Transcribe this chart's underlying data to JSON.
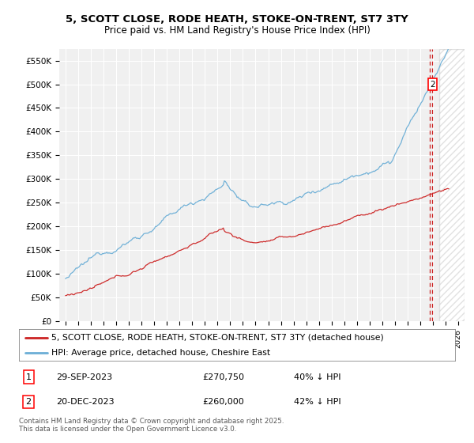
{
  "title": "5, SCOTT CLOSE, RODE HEATH, STOKE-ON-TRENT, ST7 3TY",
  "subtitle": "Price paid vs. HM Land Registry's House Price Index (HPI)",
  "ylabel_ticks": [
    "£0",
    "£50K",
    "£100K",
    "£150K",
    "£200K",
    "£250K",
    "£300K",
    "£350K",
    "£400K",
    "£450K",
    "£500K",
    "£550K"
  ],
  "ytick_values": [
    0,
    50000,
    100000,
    150000,
    200000,
    250000,
    300000,
    350000,
    400000,
    450000,
    500000,
    550000
  ],
  "ylim": [
    0,
    575000
  ],
  "xlim_start": 1994.5,
  "xlim_end": 2026.5,
  "hpi_color": "#6baed6",
  "price_color": "#cc2222",
  "annotation_color": "#cc2222",
  "background_color": "#f0f0f0",
  "grid_color": "#ffffff",
  "legend_label_price": "5, SCOTT CLOSE, RODE HEATH, STOKE-ON-TRENT, ST7 3TY (detached house)",
  "legend_label_hpi": "HPI: Average price, detached house, Cheshire East",
  "annotation1_label": "1",
  "annotation1_date": "29-SEP-2023",
  "annotation1_price": "£270,750",
  "annotation1_pct": "40% ↓ HPI",
  "annotation2_label": "2",
  "annotation2_date": "20-DEC-2023",
  "annotation2_price": "£260,000",
  "annotation2_pct": "42% ↓ HPI",
  "footer": "Contains HM Land Registry data © Crown copyright and database right 2025.\nThis data is licensed under the Open Government Licence v3.0.",
  "transaction1_x": 2023.75,
  "transaction2_x": 2023.97,
  "hatch_start": 2024.5,
  "hatch_end": 2026.5
}
